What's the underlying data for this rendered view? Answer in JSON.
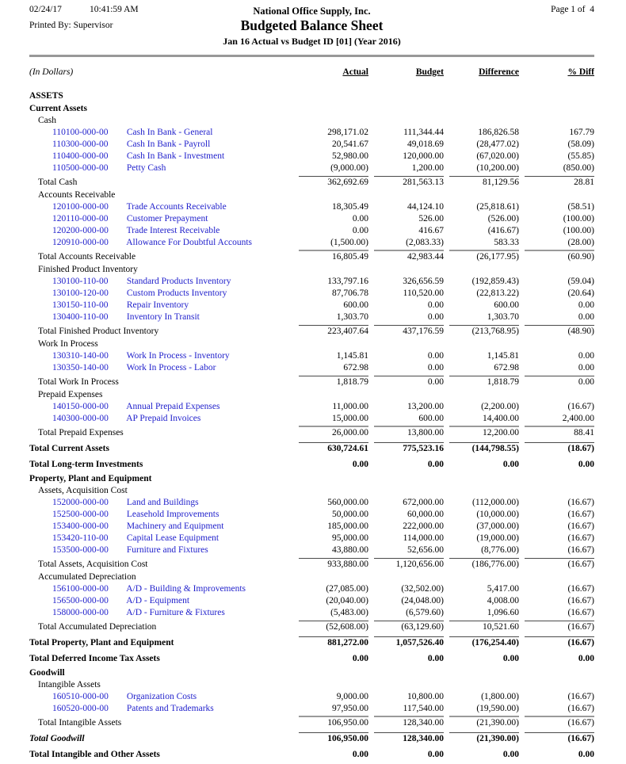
{
  "header": {
    "date": "02/24/17",
    "time": "10:41:59 AM",
    "company": "National Office Supply, Inc.",
    "page_label": "Page 1 of  4",
    "printed_by": "Printed By: Supervisor",
    "title": "Budgeted Balance Sheet",
    "subtitle": "Jan 16 Actual vs Budget ID [01] (Year 2016)"
  },
  "columns": {
    "units": "(In Dollars)",
    "actual": "Actual",
    "budget": "Budget",
    "difference": "Difference",
    "pct_diff": "% Diff"
  },
  "colors": {
    "link_blue": "#2222CC",
    "header_rule_gray": "#989898"
  },
  "rows": [
    {
      "type": "section",
      "label": "ASSETS"
    },
    {
      "type": "section",
      "label": "Current Assets"
    },
    {
      "type": "group",
      "label": "Cash"
    },
    {
      "type": "account",
      "code": "110100-000-00",
      "label": "Cash In Bank - General",
      "values": [
        "298,171.02",
        "111,344.44",
        "186,826.58",
        "167.79"
      ]
    },
    {
      "type": "account",
      "code": "110300-000-00",
      "label": "Cash In Bank - Payroll",
      "values": [
        "20,541.67",
        "49,018.69",
        "(28,477.02)",
        "(58.09)"
      ]
    },
    {
      "type": "account",
      "code": "110400-000-00",
      "label": "Cash In Bank - Investment",
      "values": [
        "52,980.00",
        "120,000.00",
        "(67,020.00)",
        "(55.85)"
      ]
    },
    {
      "type": "account",
      "code": "110500-000-00",
      "label": "Petty Cash",
      "values": [
        "(9,000.00)",
        "1,200.00",
        "(10,200.00)",
        "(850.00)"
      ]
    },
    {
      "type": "total",
      "label": "Total Cash",
      "rule": "thin",
      "values": [
        "362,692.69",
        "281,563.13",
        "81,129.56",
        "28.81"
      ]
    },
    {
      "type": "group",
      "label": "Accounts Receivable"
    },
    {
      "type": "account",
      "code": "120100-000-00",
      "label": "Trade Accounts Receivable",
      "values": [
        "18,305.49",
        "44,124.10",
        "(25,818.61)",
        "(58.51)"
      ]
    },
    {
      "type": "account",
      "code": "120110-000-00",
      "label": "Customer Prepayment",
      "values": [
        "0.00",
        "526.00",
        "(526.00)",
        "(100.00)"
      ]
    },
    {
      "type": "account",
      "code": "120200-000-00",
      "label": "Trade Interest Receivable",
      "values": [
        "0.00",
        "416.67",
        "(416.67)",
        "(100.00)"
      ]
    },
    {
      "type": "account",
      "code": "120910-000-00",
      "label": "Allowance For Doubtful Accounts",
      "values": [
        "(1,500.00)",
        "(2,083.33)",
        "583.33",
        "(28.00)"
      ]
    },
    {
      "type": "total",
      "label": "Total Accounts Receivable",
      "rule": "thick",
      "values": [
        "16,805.49",
        "42,983.44",
        "(26,177.95)",
        "(60.90)"
      ]
    },
    {
      "type": "group",
      "label": "Finished Product Inventory"
    },
    {
      "type": "account",
      "code": "130100-110-00",
      "label": "Standard Products Inventory",
      "values": [
        "133,797.16",
        "326,656.59",
        "(192,859.43)",
        "(59.04)"
      ]
    },
    {
      "type": "account",
      "code": "130100-120-00",
      "label": "Custom Products Inventory",
      "values": [
        "87,706.78",
        "110,520.00",
        "(22,813.22)",
        "(20.64)"
      ]
    },
    {
      "type": "account",
      "code": "130150-110-00",
      "label": "Repair Inventory",
      "values": [
        "600.00",
        "0.00",
        "600.00",
        "0.00"
      ]
    },
    {
      "type": "account",
      "code": "130400-110-00",
      "label": "Inventory In Transit",
      "values": [
        "1,303.70",
        "0.00",
        "1,303.70",
        "0.00"
      ]
    },
    {
      "type": "total",
      "label": "Total Finished Product Inventory",
      "rule": "thin",
      "values": [
        "223,407.64",
        "437,176.59",
        "(213,768.95)",
        "(48.90)"
      ]
    },
    {
      "type": "group",
      "label": "Work In Process"
    },
    {
      "type": "account",
      "code": "130310-140-00",
      "label": "Work In Process - Inventory",
      "values": [
        "1,145.81",
        "0.00",
        "1,145.81",
        "0.00"
      ]
    },
    {
      "type": "account",
      "code": "130350-140-00",
      "label": "Work In Process - Labor",
      "values": [
        "672.98",
        "0.00",
        "672.98",
        "0.00"
      ]
    },
    {
      "type": "total",
      "label": "Total Work In Process",
      "rule": "thin",
      "values": [
        "1,818.79",
        "0.00",
        "1,818.79",
        "0.00"
      ]
    },
    {
      "type": "group",
      "label": "Prepaid Expenses"
    },
    {
      "type": "account",
      "code": "140150-000-00",
      "label": "Annual Prepaid Expenses",
      "values": [
        "11,000.00",
        "13,200.00",
        "(2,200.00)",
        "(16.67)"
      ]
    },
    {
      "type": "account",
      "code": "140300-000-00",
      "label": "AP Prepaid Invoices",
      "values": [
        "15,000.00",
        "600.00",
        "14,400.00",
        "2,400.00"
      ]
    },
    {
      "type": "total",
      "label": "Total Prepaid Expenses",
      "rule": "thick",
      "values": [
        "26,000.00",
        "13,800.00",
        "12,200.00",
        "88.41"
      ]
    },
    {
      "type": "gtotal",
      "label": "Total Current Assets",
      "rule": "thin",
      "values": [
        "630,724.61",
        "775,523.16",
        "(144,798.55)",
        "(18.67)"
      ]
    },
    {
      "type": "gtotal",
      "label": "Total Long-term Investments",
      "values": [
        "0.00",
        "0.00",
        "0.00",
        "0.00"
      ]
    },
    {
      "type": "section",
      "label": "Property, Plant and Equipment"
    },
    {
      "type": "group",
      "label": "Assets, Acquisition Cost"
    },
    {
      "type": "account",
      "code": "152000-000-00",
      "label": "Land and Buildings",
      "values": [
        "560,000.00",
        "672,000.00",
        "(112,000.00)",
        "(16.67)"
      ]
    },
    {
      "type": "account",
      "code": "152500-000-00",
      "label": "Leasehold Improvements",
      "values": [
        "50,000.00",
        "60,000.00",
        "(10,000.00)",
        "(16.67)"
      ]
    },
    {
      "type": "account",
      "code": "153400-000-00",
      "label": "Machinery and Equipment",
      "values": [
        "185,000.00",
        "222,000.00",
        "(37,000.00)",
        "(16.67)"
      ]
    },
    {
      "type": "account",
      "code": "153420-110-00",
      "label": "Capital Lease Equipment",
      "values": [
        "95,000.00",
        "114,000.00",
        "(19,000.00)",
        "(16.67)"
      ]
    },
    {
      "type": "account",
      "code": "153500-000-00",
      "label": "Furniture and Fixtures",
      "values": [
        "43,880.00",
        "52,656.00",
        "(8,776.00)",
        "(16.67)"
      ]
    },
    {
      "type": "total",
      "label": "Total Assets, Acquisition Cost",
      "rule": "thin",
      "values": [
        "933,880.00",
        "1,120,656.00",
        "(186,776.00)",
        "(16.67)"
      ]
    },
    {
      "type": "group",
      "label": "Accumulated Depreciation"
    },
    {
      "type": "account",
      "code": "156100-000-00",
      "label": "A/D - Building & Improvements",
      "values": [
        "(27,085.00)",
        "(32,502.00)",
        "5,417.00",
        "(16.67)"
      ]
    },
    {
      "type": "account",
      "code": "156500-000-00",
      "label": "A/D - Equipment",
      "values": [
        "(20,040.00)",
        "(24,048.00)",
        "4,008.00",
        "(16.67)"
      ]
    },
    {
      "type": "account",
      "code": "158000-000-00",
      "label": "A/D - Furniture & Fixtures",
      "values": [
        "(5,483.00)",
        "(6,579.60)",
        "1,096.60",
        "(16.67)"
      ]
    },
    {
      "type": "total",
      "label": "Total Accumulated Depreciation",
      "rule": "thin",
      "values": [
        "(52,608.00)",
        "(63,129.60)",
        "10,521.60",
        "(16.67)"
      ]
    },
    {
      "type": "gtotal",
      "label": "Total Property, Plant and Equipment",
      "rule": "thin",
      "values": [
        "881,272.00",
        "1,057,526.40",
        "(176,254.40)",
        "(16.67)"
      ]
    },
    {
      "type": "gtotal",
      "label": "Total Deferred Income Tax Assets",
      "values": [
        "0.00",
        "0.00",
        "0.00",
        "0.00"
      ]
    },
    {
      "type": "section",
      "label": "Goodwill"
    },
    {
      "type": "group",
      "label": "Intangible Assets"
    },
    {
      "type": "account",
      "code": "160510-000-00",
      "label": "Organization Costs",
      "values": [
        "9,000.00",
        "10,800.00",
        "(1,800.00)",
        "(16.67)"
      ]
    },
    {
      "type": "account",
      "code": "160520-000-00",
      "label": "Patents and Trademarks",
      "values": [
        "97,950.00",
        "117,540.00",
        "(19,590.00)",
        "(16.67)"
      ]
    },
    {
      "type": "total",
      "label": "Total Intangible Assets",
      "rule": "thick",
      "values": [
        "106,950.00",
        "128,340.00",
        "(21,390.00)",
        "(16.67)"
      ]
    },
    {
      "type": "gtotal-italic",
      "label": "Total Goodwill",
      "rule": "thin",
      "values": [
        "106,950.00",
        "128,340.00",
        "(21,390.00)",
        "(16.67)"
      ]
    },
    {
      "type": "gtotal",
      "label": "Total Intangible and Other Assets",
      "values": [
        "0.00",
        "0.00",
        "0.00",
        "0.00"
      ]
    }
  ]
}
